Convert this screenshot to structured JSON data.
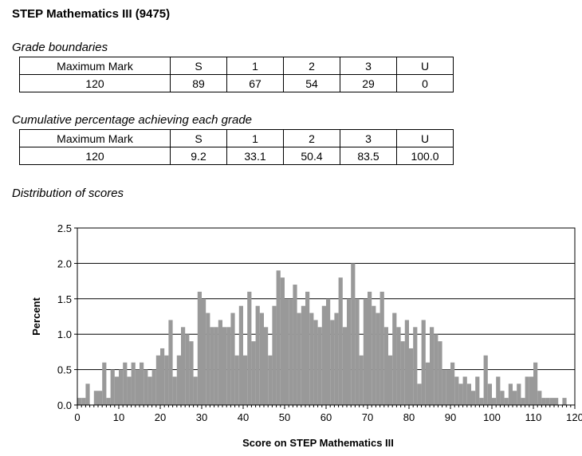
{
  "title": "STEP Mathematics III (9475)",
  "grade_boundaries": {
    "caption": "Grade boundaries",
    "header": [
      "Maximum Mark",
      "S",
      "1",
      "2",
      "3",
      "U"
    ],
    "row": [
      "120",
      "89",
      "67",
      "54",
      "29",
      "0"
    ]
  },
  "cumulative": {
    "caption": "Cumulative percentage achieving each grade",
    "header": [
      "Maximum Mark",
      "S",
      "1",
      "2",
      "3",
      "U"
    ],
    "row": [
      "120",
      "9.2",
      "33.1",
      "50.4",
      "83.5",
      "100.0"
    ]
  },
  "distribution_caption": "Distribution of scores",
  "chart_data": {
    "type": "bar",
    "title": "",
    "xlabel": "Score on STEP Mathematics III",
    "ylabel": "Percent",
    "xlim": [
      0,
      120
    ],
    "ylim": [
      0,
      2.5
    ],
    "x_ticks": [
      0,
      10,
      20,
      30,
      40,
      50,
      60,
      70,
      80,
      90,
      100,
      110,
      120
    ],
    "y_ticks": [
      "0.0",
      "0.5",
      "1.0",
      "1.5",
      "2.0",
      "2.5"
    ],
    "grid": "horizontal",
    "bar_color": "#999999",
    "x": [
      0,
      1,
      2,
      3,
      4,
      5,
      6,
      7,
      8,
      9,
      10,
      11,
      12,
      13,
      14,
      15,
      16,
      17,
      18,
      19,
      20,
      21,
      22,
      23,
      24,
      25,
      26,
      27,
      28,
      29,
      30,
      31,
      32,
      33,
      34,
      35,
      36,
      37,
      38,
      39,
      40,
      41,
      42,
      43,
      44,
      45,
      46,
      47,
      48,
      49,
      50,
      51,
      52,
      53,
      54,
      55,
      56,
      57,
      58,
      59,
      60,
      61,
      62,
      63,
      64,
      65,
      66,
      67,
      68,
      69,
      70,
      71,
      72,
      73,
      74,
      75,
      76,
      77,
      78,
      79,
      80,
      81,
      82,
      83,
      84,
      85,
      86,
      87,
      88,
      89,
      90,
      91,
      92,
      93,
      94,
      95,
      96,
      97,
      98,
      99,
      100,
      101,
      102,
      103,
      104,
      105,
      106,
      107,
      108,
      109,
      110,
      111,
      112,
      113,
      114,
      115,
      116,
      117,
      118,
      119,
      120
    ],
    "values": [
      0.1,
      0.1,
      0.3,
      0,
      0.2,
      0.2,
      0.6,
      0.1,
      0.5,
      0.4,
      0.5,
      0.6,
      0.4,
      0.6,
      0.5,
      0.6,
      0.5,
      0.4,
      0.5,
      0.7,
      0.8,
      0.7,
      1.2,
      0.4,
      0.7,
      1.1,
      1.0,
      0.9,
      0.4,
      1.6,
      1.5,
      1.3,
      1.1,
      1.1,
      1.2,
      1.1,
      1.1,
      1.3,
      0.7,
      1.4,
      0.7,
      1.6,
      0.9,
      1.4,
      1.3,
      1.1,
      0.7,
      1.4,
      1.9,
      1.8,
      1.5,
      1.5,
      1.7,
      1.3,
      1.4,
      1.6,
      1.3,
      1.2,
      1.1,
      1.4,
      1.5,
      1.2,
      1.3,
      1.8,
      1.1,
      1.5,
      2.0,
      1.5,
      0.7,
      1.5,
      1.6,
      1.4,
      1.3,
      1.6,
      1.1,
      0.7,
      1.3,
      1.1,
      0.9,
      1.2,
      0.8,
      1.1,
      0.3,
      1.2,
      0.6,
      1.1,
      1.0,
      0.9,
      0.5,
      0.5,
      0.6,
      0.4,
      0.3,
      0.4,
      0.3,
      0.2,
      0.4,
      0.1,
      0.7,
      0.3,
      0.1,
      0.4,
      0.2,
      0.1,
      0.3,
      0.2,
      0.3,
      0.1,
      0.4,
      0.4,
      0.6,
      0.2,
      0.1,
      0.1,
      0.1,
      0.1,
      0,
      0.1,
      0,
      0,
      0
    ]
  }
}
